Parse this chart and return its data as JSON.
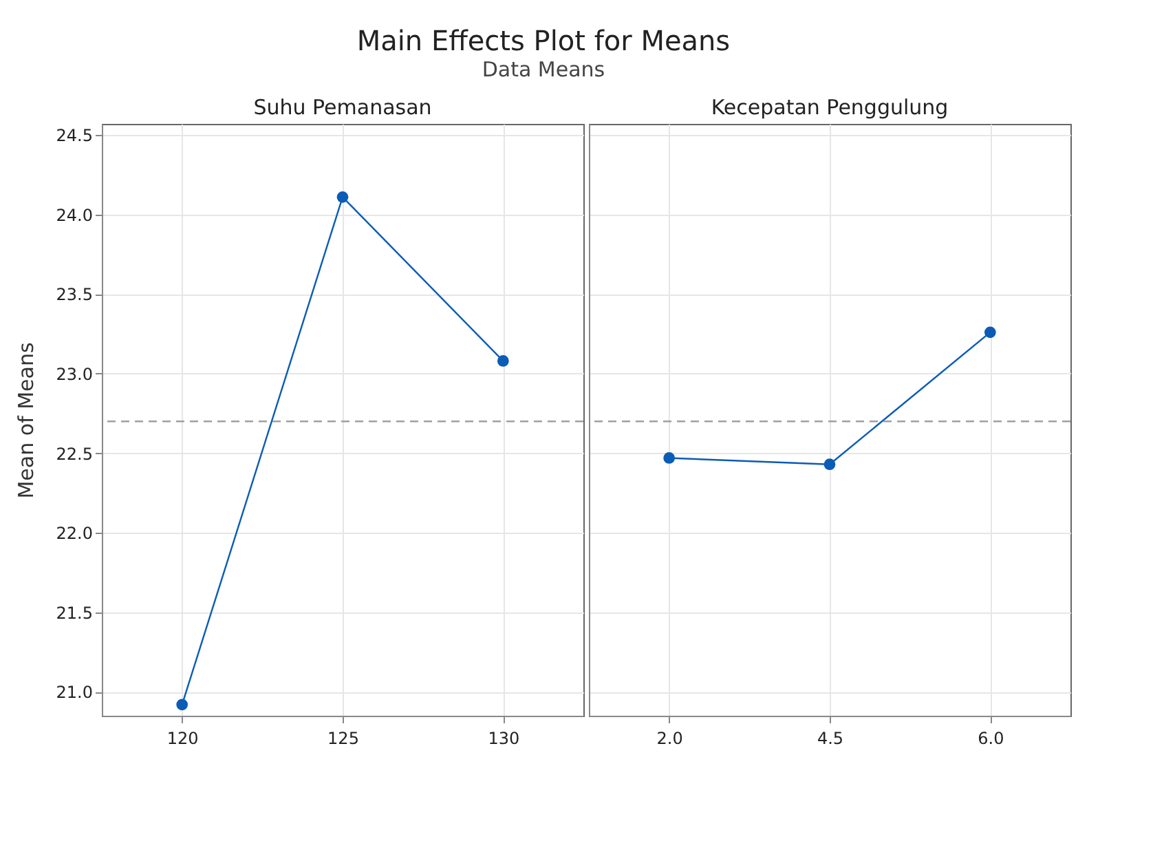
{
  "chart_data": [
    {
      "type": "line",
      "title": "Main Effects Plot for Means",
      "subtitle": "Data Means",
      "xlabel": "Suhu Pemanasan",
      "ylabel": "Mean of Means",
      "categories": [
        "120",
        "125",
        "130"
      ],
      "series": [
        {
          "color": "#0b5cb5",
          "values": [
            20.92,
            24.11,
            23.08
          ]
        }
      ],
      "ylim": [
        20.85,
        24.57
      ],
      "yticks": [
        {
          "value": 21.0,
          "label": "21.0"
        },
        21.5,
        {
          "value": 22.0,
          "label": "22.0"
        },
        22.5,
        {
          "value": 23.0,
          "label": "23.0"
        },
        23.5,
        {
          "value": 24.0,
          "label": "24.0"
        },
        24.5
      ],
      "ref_lines": [
        {
          "axis": "y",
          "value": 22.7,
          "color": "#a0a0a0",
          "line_style": "dashed"
        }
      ],
      "grid": true,
      "marker": "circle"
    },
    {
      "type": "line",
      "xlabel": "Kecepatan Penggulung",
      "categories": [
        "2.0",
        "4.5",
        "6.0"
      ],
      "series": [
        {
          "color": "#0b5cb5",
          "values": [
            22.47,
            22.43,
            23.26
          ]
        }
      ],
      "ylim": [
        20.85,
        24.57
      ],
      "yticks": [
        21,
        21.5,
        22,
        22.5,
        23,
        23.5,
        24,
        24.5
      ],
      "ref_lines": [
        {
          "axis": "y",
          "value": 22.7,
          "color": "#a0a0a0",
          "line_style": "dashed"
        }
      ],
      "grid": true,
      "marker": "circle",
      "tick_labels": "x"
    }
  ]
}
